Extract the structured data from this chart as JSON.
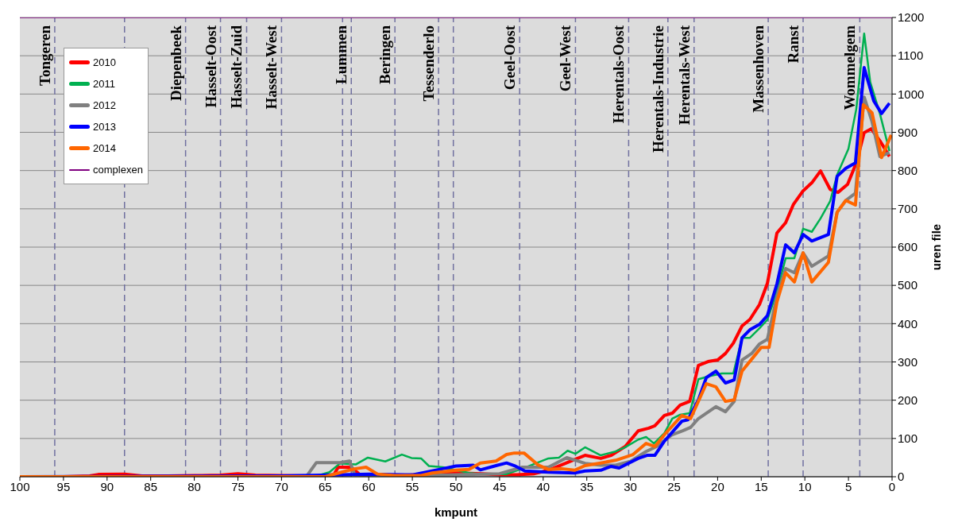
{
  "chart_data": {
    "type": "line",
    "xlabel": "kmpunt",
    "ylabel": "uren file",
    "xlim": [
      100,
      0
    ],
    "xticks": [
      100,
      95,
      90,
      85,
      80,
      75,
      70,
      65,
      60,
      55,
      50,
      45,
      40,
      35,
      30,
      25,
      20,
      15,
      10,
      5,
      0
    ],
    "ylim": [
      0,
      1200
    ],
    "yticks": [
      0,
      100,
      200,
      300,
      400,
      500,
      600,
      700,
      800,
      900,
      1000,
      1100,
      1200
    ],
    "grid": "y",
    "legend": "top left",
    "marker": "none",
    "line_style": "solid",
    "series": [
      {
        "name": "2010",
        "color": "#ff0000",
        "x": [
          100,
          95,
          92,
          91,
          88,
          86,
          83,
          80,
          77,
          75,
          73,
          70,
          66,
          64,
          63.5,
          62,
          61,
          56,
          53,
          50,
          47,
          45,
          43,
          41,
          39.4,
          36.4,
          35.2,
          33.4,
          32.2,
          30.6,
          29.1,
          27.9,
          27.2,
          26.1,
          25.2,
          24.3,
          23.2,
          22.2,
          21.1,
          20,
          19.1,
          18.2,
          17.2,
          16.3,
          15.2,
          14.3,
          13.2,
          12.2,
          11.3,
          10.2,
          9.2,
          8.2,
          7.1,
          6.2,
          5.1,
          4.1,
          3.2,
          2.4,
          1.4,
          0.3
        ],
        "values": [
          0,
          0,
          2,
          6,
          7,
          2,
          2,
          3,
          4,
          8,
          4,
          3,
          2,
          5,
          25,
          25,
          5,
          3,
          8,
          10,
          8,
          5,
          5,
          8,
          17,
          45,
          56,
          48,
          56,
          79,
          120,
          127,
          133,
          160,
          166,
          187,
          197,
          291,
          301,
          305,
          322,
          349,
          394,
          411,
          450,
          505,
          637,
          664,
          712,
          747,
          768,
          799,
          751,
          743,
          764,
          820,
          899,
          909,
          878,
          837
        ]
      },
      {
        "name": "2011",
        "color": "#00b050",
        "x": [
          100,
          70,
          66,
          64.5,
          63.3,
          61.5,
          60.1,
          58.1,
          56.2,
          55.1,
          54,
          53.1,
          51.5,
          48.5,
          47,
          44.2,
          42.4,
          39.4,
          38.2,
          37.2,
          36.3,
          35.2,
          33.4,
          31.7,
          30.6,
          29.1,
          28.2,
          27.3,
          26.1,
          25.2,
          24.3,
          23.2,
          22.2,
          20.9,
          19.5,
          18.2,
          17.2,
          16.3,
          15.2,
          14.3,
          13.2,
          12.2,
          11.2,
          10.2,
          9.2,
          8.2,
          7.1,
          6.3,
          5,
          4.1,
          3.2,
          2.5,
          1.4,
          0.3
        ],
        "values": [
          0,
          0,
          2,
          12,
          35,
          32,
          50,
          40,
          58,
          49,
          48,
          28,
          25,
          10,
          7,
          7,
          21,
          48,
          50,
          68,
          60,
          77,
          56,
          66,
          77,
          97,
          104,
          87,
          114,
          152,
          162,
          166,
          255,
          263,
          270,
          270,
          363,
          363,
          388,
          410,
          484,
          571,
          571,
          648,
          640,
          675,
          720,
          789,
          857,
          961,
          1158,
          1031,
          949,
          851
        ]
      },
      {
        "name": "2012",
        "color": "#808080",
        "x": [
          100,
          68,
          67.1,
          66,
          63.3,
          62.2,
          61.6,
          55,
          50,
          45,
          42.4,
          39.4,
          37.3,
          35.2,
          33.4,
          31.7,
          30,
          28.2,
          27,
          25.2,
          24,
          23.1,
          22.2,
          21.3,
          20.2,
          19.1,
          18.1,
          17.2,
          16.1,
          15.2,
          14.3,
          13.2,
          12.2,
          11.2,
          10.2,
          9.2,
          7.3,
          6.3,
          5.3,
          4.2,
          3.2,
          2.3,
          1.4,
          0.3
        ],
        "values": [
          0,
          0,
          2,
          37,
          37,
          41,
          5,
          2,
          5,
          8,
          25,
          25,
          50,
          35,
          30,
          30,
          40,
          66,
          79,
          110,
          120,
          129,
          152,
          166,
          183,
          170,
          197,
          305,
          322,
          347,
          359,
          471,
          544,
          533,
          585,
          550,
          577,
          691,
          722,
          741,
          992,
          928,
          837,
          847
        ]
      },
      {
        "name": "2013",
        "color": "#0000ff",
        "x": [
          100,
          70,
          63,
          60,
          55,
          51.5,
          50,
          48,
          47.2,
          45.4,
          44.2,
          43.3,
          42.1,
          39.4,
          36.4,
          35.2,
          33.4,
          32.2,
          31.3,
          29.1,
          28.1,
          27.2,
          26.1,
          24.1,
          23.4,
          22.2,
          21.3,
          20.2,
          19.1,
          18.1,
          17.2,
          16.3,
          15.2,
          14.3,
          13.2,
          12.2,
          11.2,
          10.2,
          9.2,
          7.3,
          6.3,
          5.3,
          4.2,
          3.2,
          2.1,
          1.2,
          0.3
        ],
        "values": [
          0,
          2,
          5,
          7,
          5,
          21,
          28,
          30,
          18,
          29,
          36,
          29,
          15,
          12,
          10,
          15,
          17,
          27,
          23,
          48,
          56,
          56,
          93,
          145,
          149,
          201,
          259,
          276,
          245,
          253,
          363,
          384,
          398,
          421,
          504,
          606,
          585,
          633,
          616,
          633,
          785,
          806,
          820,
          1069,
          982,
          949,
          976
        ]
      },
      {
        "name": "2014",
        "color": "#ff6600",
        "x": [
          100,
          65,
          62.6,
          61.5,
          60.3,
          59,
          57,
          54,
          52.7,
          50,
          48.5,
          47.2,
          45.4,
          44.2,
          43.3,
          42.2,
          40.6,
          39.4,
          37.9,
          36.4,
          35.2,
          33.4,
          31.7,
          29.7,
          28.2,
          27.2,
          26.1,
          24.1,
          23.1,
          21.3,
          20.2,
          19.1,
          18.1,
          17.2,
          16.1,
          15,
          14.1,
          13.2,
          12.2,
          11.2,
          10.2,
          9.2,
          7.3,
          6.3,
          5.3,
          4.2,
          3.3,
          2.3,
          1.2,
          0.1
        ],
        "values": [
          0,
          0,
          15,
          21,
          25,
          7,
          3,
          3,
          10,
          17,
          19,
          36,
          41,
          58,
          62,
          62,
          31,
          19,
          21,
          17,
          29,
          36,
          43,
          58,
          87,
          79,
          110,
          160,
          152,
          243,
          235,
          197,
          201,
          276,
          307,
          338,
          338,
          457,
          533,
          509,
          585,
          509,
          560,
          691,
          722,
          710,
          972,
          951,
          834,
          893
        ]
      },
      {
        "name": "complexen",
        "color": "#800080",
        "x": [
          100,
          0
        ],
        "values": [
          1200,
          1200
        ]
      }
    ],
    "ref_lines": [
      {
        "axis": "x",
        "value": 96,
        "label": "Tongeren",
        "color": "#7070a0",
        "line_style": "dashed"
      },
      {
        "axis": "x",
        "value": 88,
        "color": "#7070a0",
        "line_style": "dashed"
      },
      {
        "axis": "x",
        "value": 81,
        "label": "Diepenbeek",
        "color": "#7070a0",
        "line_style": "dashed"
      },
      {
        "axis": "x",
        "value": 77,
        "label": "Hasselt-Oost",
        "color": "#7070a0",
        "line_style": "dashed"
      },
      {
        "axis": "x",
        "value": 74,
        "label": "Hasselt-Zuid",
        "color": "#7070a0",
        "line_style": "dashed"
      },
      {
        "axis": "x",
        "value": 70,
        "label": "Hasselt-West",
        "color": "#7070a0",
        "line_style": "dashed"
      },
      {
        "axis": "x",
        "value": 63,
        "color": "#7070a0",
        "line_style": "dashed"
      },
      {
        "axis": "x",
        "value": 62,
        "label": "Lummen",
        "color": "#7070a0",
        "line_style": "dashed"
      },
      {
        "axis": "x",
        "value": 57,
        "label": "Beringen",
        "color": "#7070a0",
        "line_style": "dashed"
      },
      {
        "axis": "x",
        "value": 52,
        "label": "Tessenderlo",
        "color": "#7070a0",
        "line_style": "dashed"
      },
      {
        "axis": "x",
        "value": 50.3,
        "color": "#7070a0",
        "line_style": "dashed"
      },
      {
        "axis": "x",
        "value": 42.7,
        "label": "Geel-Oost",
        "color": "#7070a0",
        "line_style": "dashed"
      },
      {
        "axis": "x",
        "value": 36.3,
        "label": "Geel-West",
        "color": "#7070a0",
        "line_style": "dashed"
      },
      {
        "axis": "x",
        "value": 30.2,
        "label": "Herentals-Oost",
        "color": "#7070a0",
        "line_style": "dashed"
      },
      {
        "axis": "x",
        "value": 25.7,
        "label": "Herentals-Industrie",
        "color": "#7070a0",
        "line_style": "dashed"
      },
      {
        "axis": "x",
        "value": 22.7,
        "label": "Herentals-West",
        "color": "#7070a0",
        "line_style": "dashed"
      },
      {
        "axis": "x",
        "value": 14.2,
        "label": "Massenhoven",
        "color": "#7070a0",
        "line_style": "dashed"
      },
      {
        "axis": "x",
        "value": 10.2,
        "label": "Ranst",
        "color": "#7070a0",
        "line_style": "dashed"
      },
      {
        "axis": "x",
        "value": 3.7,
        "label": "Wommelgem",
        "color": "#7070a0",
        "line_style": "dashed"
      }
    ]
  }
}
